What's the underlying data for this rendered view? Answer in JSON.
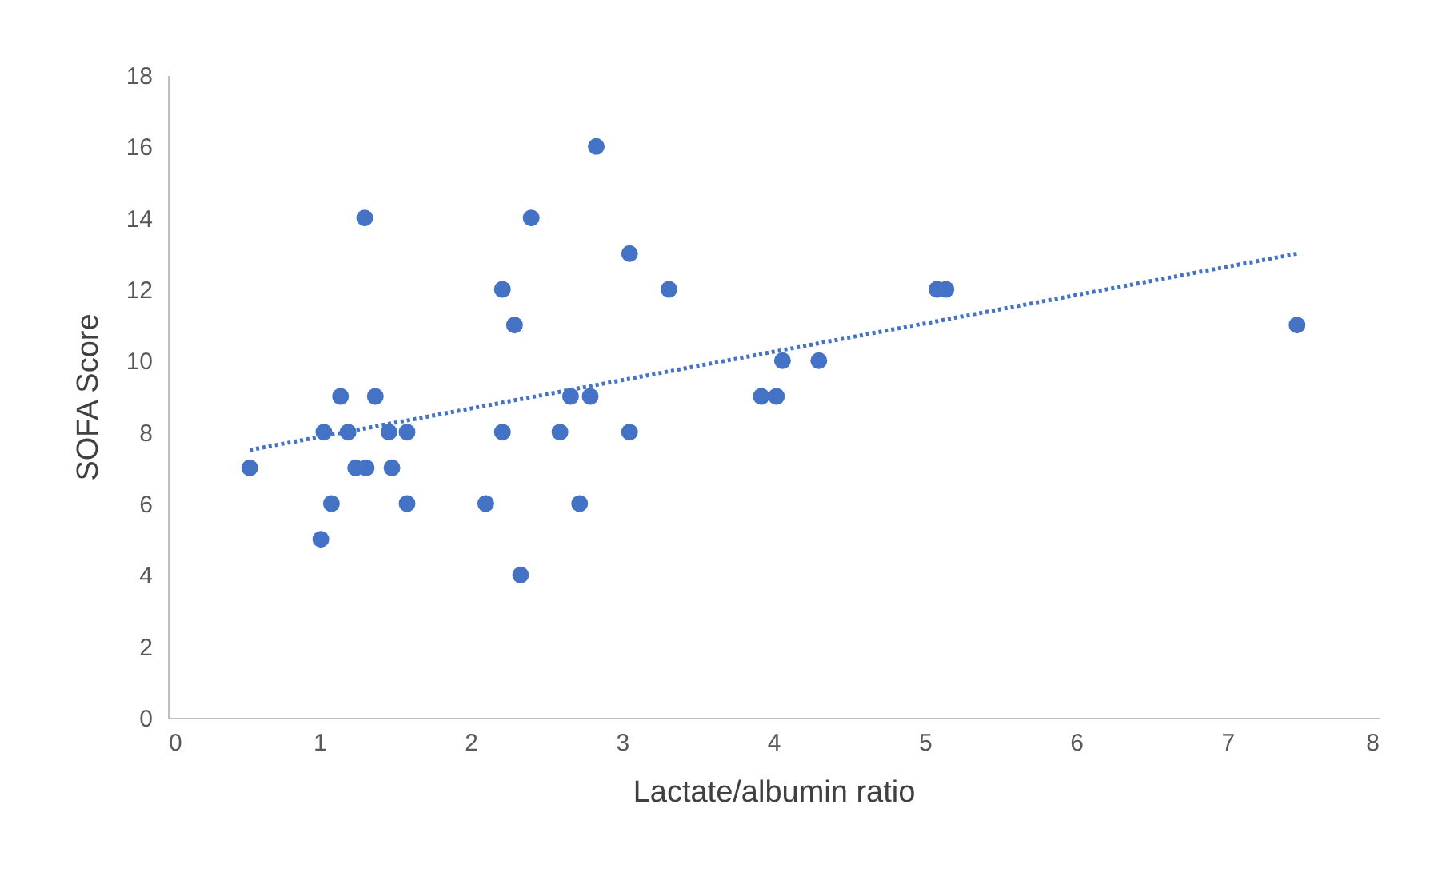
{
  "chart_data": {
    "type": "scatter",
    "xlabel": "Lactate/albumin ratio",
    "ylabel": "SOFA Score",
    "xlim": [
      0,
      8
    ],
    "ylim": [
      0,
      18
    ],
    "xticks": [
      0,
      1,
      2,
      3,
      4,
      5,
      6,
      7,
      8
    ],
    "yticks": [
      0,
      2,
      4,
      6,
      8,
      10,
      12,
      14,
      16,
      18
    ],
    "grid": false,
    "marker": "circle",
    "x": [
      0.54,
      1.01,
      1.03,
      1.08,
      1.14,
      1.19,
      1.24,
      1.3,
      1.31,
      1.37,
      1.46,
      1.48,
      1.58,
      1.58,
      2.1,
      2.21,
      2.21,
      2.29,
      2.33,
      2.4,
      2.59,
      2.66,
      2.72,
      2.79,
      2.83,
      3.05,
      3.05,
      3.31,
      3.92,
      4.02,
      4.06,
      4.3,
      5.08,
      5.14,
      7.46
    ],
    "series": [
      {
        "color": "#4472c4",
        "values": [
          7,
          5,
          8,
          6,
          9,
          8,
          7,
          14,
          7,
          9,
          8,
          7,
          8,
          6,
          6,
          12,
          8,
          11,
          4,
          14,
          8,
          9,
          6,
          9,
          16,
          13,
          8,
          12,
          9,
          9,
          10,
          10,
          12,
          12,
          11
        ]
      },
      {
        "type": "line",
        "color": "#4472c4",
        "line_style": "dotted",
        "marker": "none",
        "x": [
          0.54,
          7.46
        ],
        "values": [
          7.5,
          13.0
        ]
      }
    ]
  }
}
